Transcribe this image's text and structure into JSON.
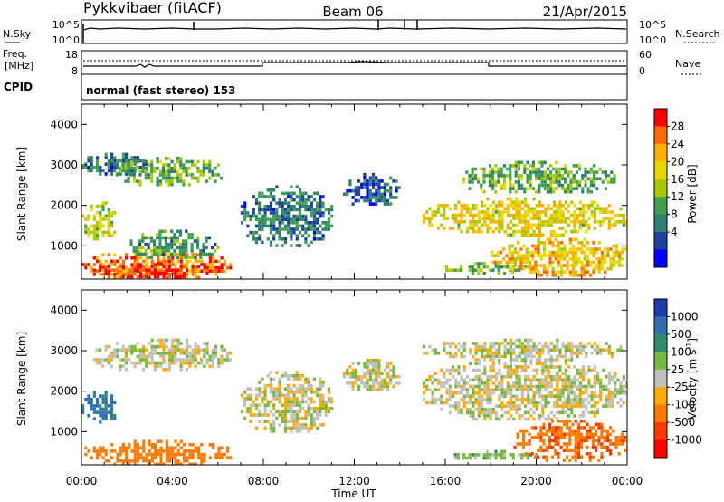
{
  "header": {
    "station": "Pykkvibaer (fitACF)",
    "beam": "Beam 06",
    "date": "21/Apr/2015"
  },
  "nsky_panel": {
    "left_label": "N.Sky",
    "left_ticks": [
      "10^5",
      "10^0"
    ],
    "right_label": "N.Search",
    "right_ticks": [
      "10^5",
      "10^0"
    ]
  },
  "freq_panel": {
    "left_label_line1": "Freq.",
    "left_label_line2": "[MHz]",
    "left_ticks": [
      "18",
      "8"
    ],
    "right_label": "Nave",
    "right_ticks": [
      "60",
      "0"
    ]
  },
  "cpid": {
    "label": "CPID",
    "text": "normal (fast stereo) 153"
  },
  "axes": {
    "ylabel": "Slant Range [km]",
    "xlabel": "Time UT",
    "yticks": [
      "4000",
      "3000",
      "2000",
      "1000"
    ],
    "xticks": [
      "00:00",
      "04:00",
      "08:00",
      "12:00",
      "16:00",
      "20:00",
      "00:00"
    ]
  },
  "power_colorbar": {
    "label": "Power [dB]",
    "ticks": [
      "28",
      "24",
      "20",
      "16",
      "12",
      "8",
      "4"
    ],
    "colors": [
      "#ff0000",
      "#ff6a00",
      "#ffb000",
      "#e8d800",
      "#a8c800",
      "#40a050",
      "#2f8070",
      "#2040a0",
      "#0000ff"
    ]
  },
  "velocity_colorbar": {
    "label": "Velocity [m s-1]",
    "label_main": "Velocity [m s",
    "label_sup": "-1",
    "label_end": "]",
    "ticks": [
      "1000",
      "500",
      "100",
      "25",
      "-25",
      "-100",
      "-500",
      "-1000"
    ],
    "colors": [
      "#1c3ca8",
      "#2f6fb0",
      "#2f8a70",
      "#78b840",
      "#c0c0c0",
      "#ffaa00",
      "#ff7a00",
      "#ff3a00",
      "#ff0000"
    ]
  },
  "chart_data": {
    "type": "heatmap",
    "x_range_hours": [
      0,
      24
    ],
    "y_range_km": [
      180,
      4500
    ],
    "grid": false,
    "power_regions": [
      {
        "t0": 0.0,
        "t1": 6.5,
        "r0": 200,
        "r1": 900,
        "level": 26
      },
      {
        "t0": 0.5,
        "t1": 5.5,
        "r0": 250,
        "r1": 600,
        "level": 30
      },
      {
        "t0": 0.0,
        "t1": 1.5,
        "r0": 1200,
        "r1": 2100,
        "level": 18
      },
      {
        "t0": 0.0,
        "t1": 3.0,
        "r0": 2800,
        "r1": 3300,
        "level": 10
      },
      {
        "t0": 1.5,
        "t1": 6.2,
        "r0": 2500,
        "r1": 3200,
        "level": 14
      },
      {
        "t0": 2.0,
        "t1": 6.0,
        "r0": 700,
        "r1": 1400,
        "level": 12
      },
      {
        "t0": 7.0,
        "t1": 11.0,
        "r0": 1000,
        "r1": 2500,
        "level": 10
      },
      {
        "t0": 11.5,
        "t1": 14.0,
        "r0": 2000,
        "r1": 2800,
        "level": 8
      },
      {
        "t0": 15.0,
        "t1": 24.0,
        "r0": 1300,
        "r1": 2200,
        "level": 20
      },
      {
        "t0": 16.0,
        "t1": 20.0,
        "r0": 350,
        "r1": 600,
        "level": 14
      },
      {
        "t0": 18.0,
        "t1": 24.0,
        "r0": 300,
        "r1": 1200,
        "level": 22
      },
      {
        "t0": 16.5,
        "t1": 23.5,
        "r0": 2300,
        "r1": 3100,
        "level": 14
      }
    ],
    "velocity_regions": [
      {
        "t0": 0.0,
        "t1": 6.5,
        "r0": 200,
        "r1": 800,
        "level": -300
      },
      {
        "t0": 0.0,
        "t1": 1.5,
        "r0": 1200,
        "r1": 2000,
        "level": 600
      },
      {
        "t0": 0.5,
        "t1": 6.5,
        "r0": 2500,
        "r1": 3300,
        "level": 0
      },
      {
        "t0": 7.0,
        "t1": 11.0,
        "r0": 1000,
        "r1": 2500,
        "level": 0
      },
      {
        "t0": 11.5,
        "t1": 14.0,
        "r0": 2000,
        "r1": 2800,
        "level": 0
      },
      {
        "t0": 15.0,
        "t1": 24.0,
        "r0": 1300,
        "r1": 2800,
        "level": 0
      },
      {
        "t0": 16.0,
        "t1": 20.0,
        "r0": 350,
        "r1": 550,
        "level": 60
      },
      {
        "t0": 19.0,
        "t1": 24.0,
        "r0": 300,
        "r1": 1300,
        "level": -400
      },
      {
        "t0": 15.0,
        "t1": 24.0,
        "r0": 2800,
        "r1": 3300,
        "level": 0
      }
    ]
  }
}
